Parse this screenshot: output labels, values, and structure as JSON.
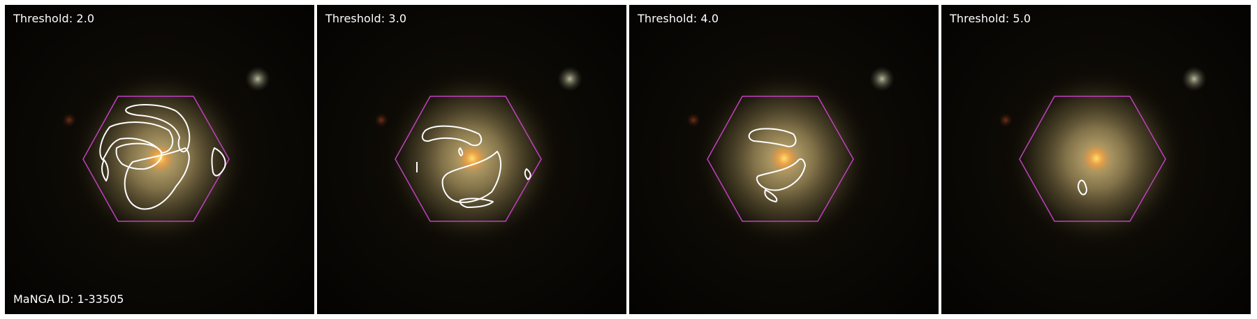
{
  "figure": {
    "galaxy_id_label": "MaNGA ID: 1-33505",
    "hexagon_color": "#c040c0",
    "contour_color": "#ffffff",
    "panels": [
      {
        "label": "Threshold: 2.0",
        "threshold": 2.0
      },
      {
        "label": "Threshold: 3.0",
        "threshold": 3.0
      },
      {
        "label": "Threshold: 4.0",
        "threshold": 4.0
      },
      {
        "label": "Threshold: 5.0",
        "threshold": 5.0
      }
    ]
  }
}
